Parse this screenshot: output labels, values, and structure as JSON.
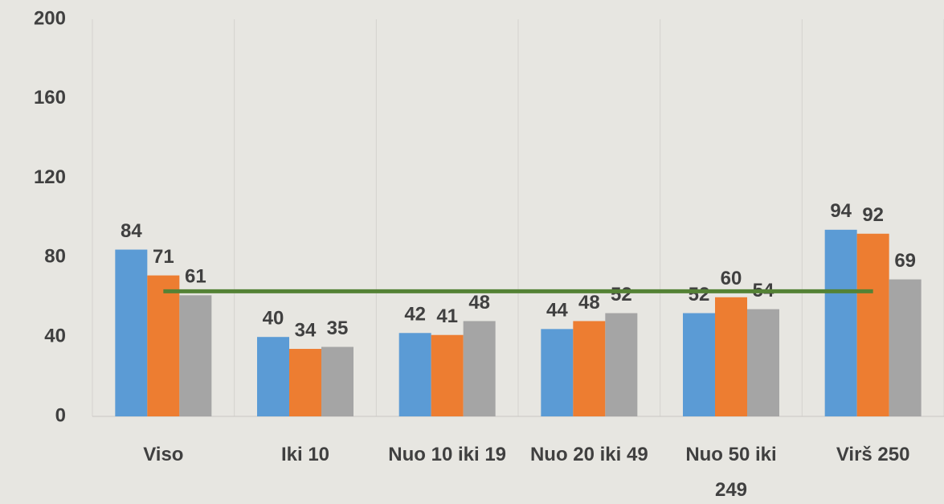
{
  "chart_data": {
    "type": "bar",
    "categories": [
      "Viso",
      "Iki 10",
      "Nuo 10 iki 19",
      "Nuo 20 iki 49",
      "Nuo 50 iki 249",
      "Virš 250"
    ],
    "series": [
      {
        "color": "#5b9bd5",
        "values": [
          84,
          40,
          42,
          44,
          52,
          94
        ]
      },
      {
        "color": "#ed7d31",
        "values": [
          71,
          34,
          41,
          48,
          60,
          92
        ]
      },
      {
        "color": "#a5a5a5",
        "values": [
          61,
          35,
          48,
          52,
          54,
          69
        ]
      },
      {
        "type": "line",
        "color": "#548235",
        "values": [
          63,
          63,
          63,
          63,
          63,
          63
        ]
      }
    ],
    "ylim": [
      0,
      200
    ],
    "yticks": [
      0,
      40,
      80,
      120,
      160,
      200
    ],
    "grid": true
  }
}
